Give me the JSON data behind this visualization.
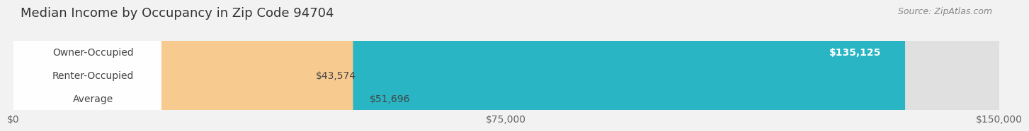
{
  "title": "Median Income by Occupancy in Zip Code 94704",
  "source": "Source: ZipAtlas.com",
  "categories": [
    "Owner-Occupied",
    "Renter-Occupied",
    "Average"
  ],
  "values": [
    135125,
    43574,
    51696
  ],
  "bar_colors": [
    "#29b5c3",
    "#c3aed4",
    "#f7ca90"
  ],
  "value_labels": [
    "$135,125",
    "$43,574",
    "$51,696"
  ],
  "value_label_on_bar": [
    true,
    false,
    false
  ],
  "xlim": [
    0,
    150000
  ],
  "xticks": [
    0,
    75000,
    150000
  ],
  "xticklabels": [
    "$0",
    "$75,000",
    "$150,000"
  ],
  "background_color": "#f2f2f2",
  "bar_background_color": "#e0e0e0",
  "title_fontsize": 13,
  "source_fontsize": 9,
  "label_fontsize": 10,
  "value_fontsize": 10,
  "bar_height": 0.62
}
